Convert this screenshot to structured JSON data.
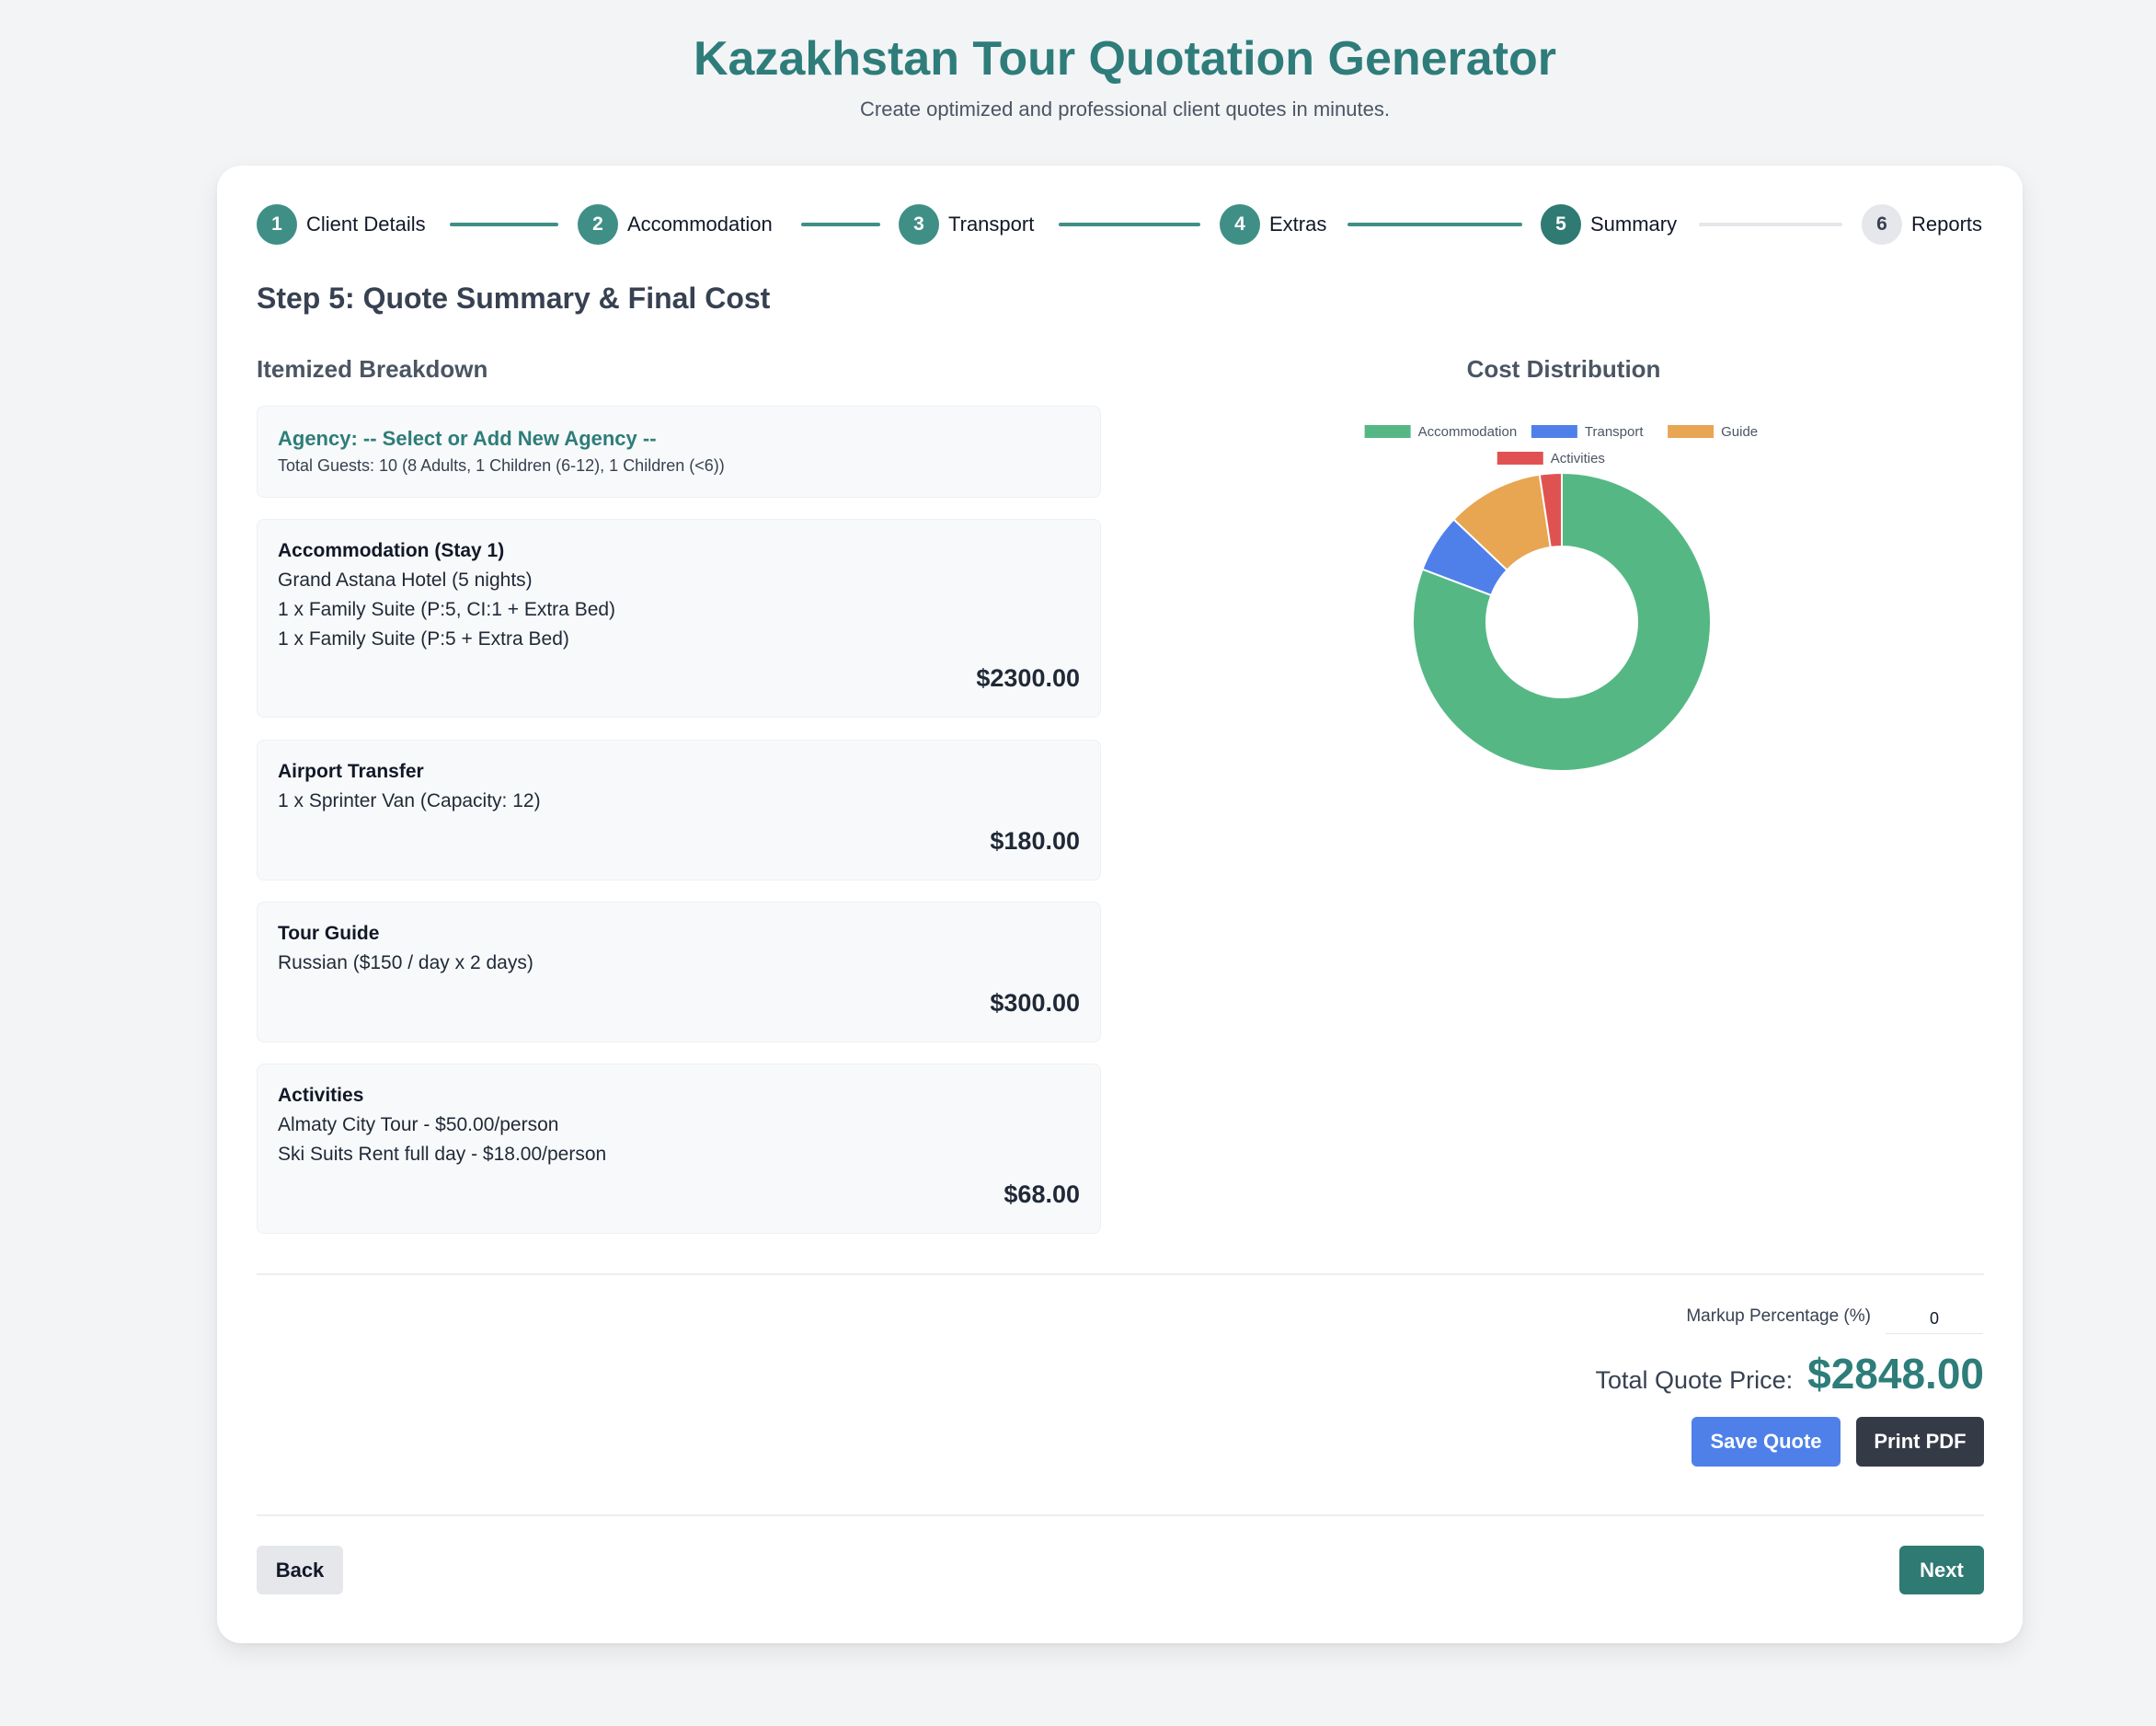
{
  "header": {
    "title": "Kazakhstan Tour Quotation Generator",
    "subtitle": "Create optimized and professional client quotes in minutes."
  },
  "stepper": {
    "steps": [
      {
        "number": "1",
        "label": "Client Details",
        "status": "complete"
      },
      {
        "number": "2",
        "label": "Accommodation",
        "status": "complete"
      },
      {
        "number": "3",
        "label": "Transport",
        "status": "complete"
      },
      {
        "number": "4",
        "label": "Extras",
        "status": "complete"
      },
      {
        "number": "5",
        "label": "Summary",
        "status": "active"
      },
      {
        "number": "6",
        "label": "Reports",
        "status": "pending"
      }
    ]
  },
  "step_heading": "Step 5: Quote Summary & Final Cost",
  "breakdown": {
    "title": "Itemized Breakdown",
    "agency": "Agency: -- Select or Add New Agency --",
    "guests": "Total Guests: 10 (8 Adults, 1 Children (6-12), 1 Children (<6))",
    "accommodation": {
      "title": "Accommodation (Stay 1)",
      "lines": [
        "Grand Astana Hotel (5 nights)",
        "1 x Family Suite (P:5, CI:1 + Extra Bed)",
        "1 x Family Suite (P:5 + Extra Bed)"
      ],
      "cost": "$2300.00"
    },
    "transfer": {
      "title": "Airport Transfer",
      "lines": [
        "1 x Sprinter Van (Capacity: 12)"
      ],
      "cost": "$180.00"
    },
    "guide": {
      "title": "Tour Guide",
      "lines": [
        "Russian ($150 / day x 2 days)"
      ],
      "cost": "$300.00"
    },
    "activities": {
      "title": "Activities",
      "lines": [
        "Almaty City Tour - $50.00/person",
        "Ski Suits Rent full day - $18.00/person"
      ],
      "cost": "$68.00"
    }
  },
  "chart_data": {
    "type": "pie",
    "variant": "doughnut",
    "title": "Cost Distribution",
    "categories": [
      "Accommodation",
      "Transport",
      "Guide",
      "Activities"
    ],
    "values": [
      2300,
      180,
      300,
      68
    ],
    "colors": [
      "#55b884",
      "#4f80ea",
      "#e8a552",
      "#e05252"
    ],
    "legend_position": "top"
  },
  "summary": {
    "markup_label": "Markup Percentage (%)",
    "markup_value": "0",
    "total_label": "Total Quote Price:",
    "total_value": "$2848.00",
    "save_label": "Save Quote",
    "print_label": "Print PDF"
  },
  "nav": {
    "back_label": "Back",
    "next_label": "Next"
  }
}
